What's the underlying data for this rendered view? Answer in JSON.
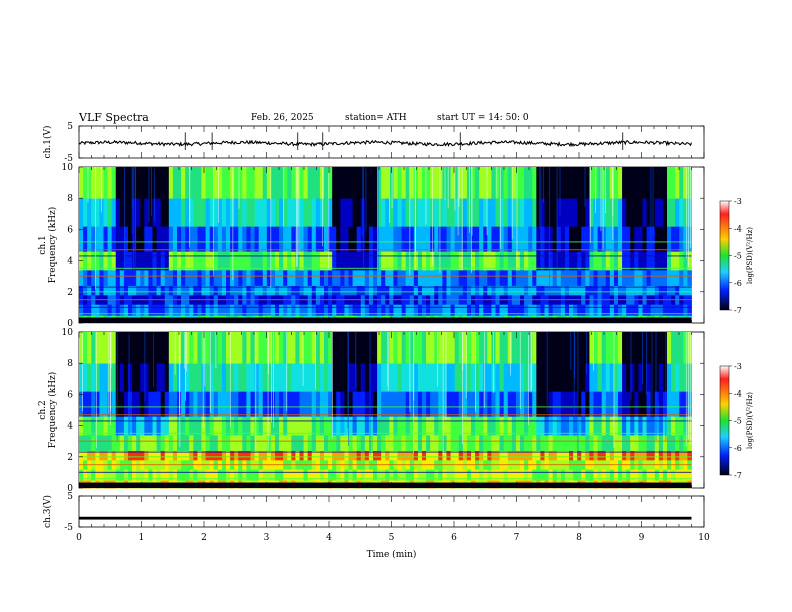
{
  "header": {
    "title": "VLF  Spectra",
    "date": "Feb. 26, 2025",
    "station": "station= ATH",
    "start": "start  UT  =    14: 50: 0"
  },
  "chart_data": [
    {
      "type": "line",
      "ylabel": "ch.1(V)",
      "ylim": [
        -5,
        5
      ],
      "yticks": [
        "5",
        "-5"
      ],
      "xlim": [
        0,
        10
      ],
      "series": [
        {
          "values_summary": "waveform near -0.5 V with small fluctuations"
        }
      ]
    },
    {
      "type": "heatmap",
      "ylabel": "ch.1\nFrequency  (kHz)",
      "ylim": [
        0,
        10
      ],
      "yticks": [
        "0",
        "2",
        "4",
        "6",
        "8",
        "10"
      ],
      "xlim": [
        0,
        9.8
      ],
      "colorbar": {
        "label": "log(PSD)(V²/Hz)",
        "range": [
          -7,
          -3
        ],
        "ticks": [
          "-3",
          "-4",
          "-5",
          "-6",
          "-7"
        ]
      },
      "dark_intervals_min": [
        [
          0.6,
          1.45
        ],
        [
          4.05,
          4.8
        ],
        [
          7.35,
          8.15
        ],
        [
          8.7,
          9.4
        ]
      ]
    },
    {
      "type": "heatmap",
      "ylabel": "ch.2\nFrequency  (kHz)",
      "ylim": [
        0,
        10
      ],
      "yticks": [
        "0",
        "2",
        "4",
        "6",
        "8",
        "10"
      ],
      "xlim": [
        0,
        9.8
      ],
      "colorbar": {
        "label": "log(PSD)(V²/Hz)",
        "range": [
          -7,
          -3
        ],
        "ticks": [
          "-3",
          "-4",
          "-5",
          "-6",
          "-7"
        ]
      },
      "dark_intervals_min": [
        [
          0.6,
          1.45
        ],
        [
          4.05,
          4.8
        ],
        [
          7.35,
          8.15
        ],
        [
          8.7,
          9.4
        ]
      ]
    },
    {
      "type": "line",
      "ylabel": "ch.3(V)",
      "ylim": [
        -5,
        5
      ],
      "yticks": [
        "5",
        "-5"
      ],
      "xlim": [
        0,
        10
      ],
      "series": [
        {
          "values_summary": "flat line near -2 V"
        }
      ]
    }
  ],
  "xaxis": {
    "label": "Time  (min)",
    "ticks": [
      "0",
      "1",
      "2",
      "3",
      "4",
      "5",
      "6",
      "7",
      "8",
      "9",
      "10"
    ]
  }
}
